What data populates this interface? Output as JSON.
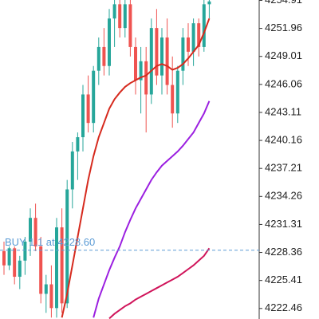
{
  "chart_data": {
    "type": "candlestick",
    "open": [
      4228.5,
      4227,
      4228.8,
      4225.8,
      4227.5,
      4229.5,
      4232,
      4229,
      4224,
      4225,
      4222.5,
      4231,
      4223,
      4235,
      4239,
      4240.5,
      4245,
      4242,
      4247.5,
      4250,
      4248,
      4253,
      4254.5,
      4252,
      4254.5,
      4250,
      4246.5,
      4248.5,
      4245,
      4252,
      4247,
      4251,
      4246,
      4243,
      4247.5,
      4251,
      4249.5,
      4252.5,
      4250,
      4254.5
    ],
    "high": [
      4229.5,
      4229,
      4229,
      4228,
      4230,
      4233,
      4233.5,
      4230,
      4226,
      4227,
      4232,
      4233,
      4236,
      4240,
      4241,
      4246,
      4247,
      4248,
      4251,
      4252,
      4254,
      4255,
      4255,
      4255,
      4255,
      4251,
      4250,
      4250,
      4253,
      4254,
      4252,
      4253,
      4249,
      4248,
      4252,
      4252.5,
      4253,
      4253,
      4255,
      4255
    ],
    "low": [
      4226,
      4226.5,
      4225,
      4224.5,
      4226,
      4228,
      4228.5,
      4223,
      4222,
      4221.5,
      4221.5,
      4222,
      4222.5,
      4233,
      4236,
      4239,
      4241,
      4241,
      4246,
      4247,
      4247,
      4250,
      4251,
      4251,
      4249,
      4245,
      4243,
      4241,
      4244,
      4246,
      4245,
      4245,
      4241.5,
      4242,
      4246,
      4248,
      4248,
      4249,
      4249.5,
      4253
    ],
    "close": [
      4227,
      4228.8,
      4225.8,
      4227.5,
      4229.5,
      4232,
      4229,
      4224,
      4225,
      4222.5,
      4231,
      4223,
      4235,
      4239,
      4240.5,
      4245,
      4242,
      4247.5,
      4250,
      4248,
      4253,
      4254.5,
      4252,
      4254.5,
      4250,
      4246.5,
      4248.5,
      4245,
      4252,
      4247,
      4251,
      4246,
      4243,
      4247.5,
      4251,
      4249.5,
      4252.5,
      4250,
      4254.5,
      4254.8
    ],
    "up_color": "#26a69a",
    "down_color": "#ef5350",
    "series": [
      {
        "color": "#d62a1e",
        "values": [
          null,
          null,
          null,
          null,
          null,
          null,
          null,
          null,
          null,
          null,
          null,
          4221.5,
          4224,
          4227,
          4230,
          4233,
          4236,
          4238.5,
          4240.5,
          4242,
          4243.5,
          4244.5,
          4245.2,
          4245.8,
          4246.2,
          4246.5,
          4246.8,
          4247,
          4247.5,
          4248,
          4248.2,
          4248,
          4247.6,
          4247.8,
          4248.2,
          4248.8,
          4249.5,
          4250.2,
          4251.5,
          4253
        ]
      },
      {
        "color": "#9b1fe0",
        "values": [
          null,
          null,
          null,
          null,
          null,
          null,
          null,
          null,
          null,
          null,
          null,
          null,
          null,
          null,
          null,
          null,
          null,
          4221.5,
          4223.5,
          4225,
          4226.5,
          4227.8,
          4229,
          4230.5,
          4231.8,
          4233,
          4234,
          4235,
          4236,
          4236.8,
          4237.5,
          4238,
          4238.5,
          4239,
          4239.6,
          4240.3,
          4241,
          4242,
          4243,
          4244.3
        ]
      },
      {
        "color": "#d0145a",
        "values": [
          null,
          null,
          null,
          null,
          null,
          null,
          null,
          null,
          null,
          null,
          null,
          null,
          null,
          null,
          null,
          null,
          null,
          null,
          null,
          null,
          4221.4,
          4221.9,
          4222.3,
          4222.7,
          4223,
          4223.4,
          4223.7,
          4224,
          4224.3,
          4224.6,
          4224.9,
          4225.2,
          4225.5,
          4225.8,
          4226.2,
          4226.6,
          4227,
          4227.5,
          4228,
          4228.8
        ]
      }
    ],
    "ylim": [
      4221.35,
      4254.95
    ],
    "yticks": [
      4254.91,
      4251.96,
      4249.01,
      4246.06,
      4243.11,
      4240.16,
      4237.21,
      4234.26,
      4231.31,
      4228.36,
      4225.41,
      4222.46
    ],
    "buy_line": {
      "label": "BUY 1.1 at 4228.60",
      "value": 4228.6,
      "color": "#5b9bd5"
    }
  }
}
